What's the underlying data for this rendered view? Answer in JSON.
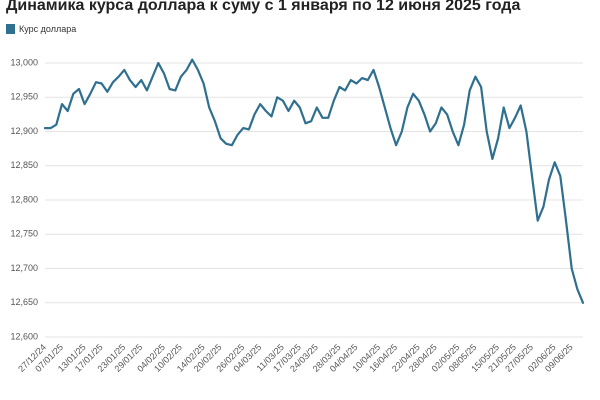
{
  "chart_data": {
    "type": "line",
    "title": "Динамика курса доллара к суму с 1 января по 12 июня 2025 года",
    "categories": [
      "27/12/24",
      null,
      null,
      "07/01/25",
      null,
      null,
      null,
      "13/01/25",
      null,
      null,
      "17/01/25",
      null,
      null,
      null,
      "23/01/25",
      null,
      null,
      "29/01/25",
      null,
      null,
      null,
      "04/02/25",
      null,
      null,
      "10/02/25",
      null,
      null,
      null,
      "14/02/25",
      null,
      null,
      "20/02/25",
      null,
      null,
      null,
      "26/02/25",
      null,
      null,
      "04/03/25",
      null,
      null,
      null,
      "11/03/25",
      null,
      null,
      "17/03/25",
      null,
      null,
      "24/03/25",
      null,
      null,
      null,
      "28/03/25",
      null,
      null,
      "04/04/25",
      null,
      null,
      null,
      "10/04/25",
      null,
      null,
      "16/04/25",
      null,
      null,
      null,
      "22/04/25",
      null,
      null,
      "28/04/25",
      null,
      null,
      null,
      "02/05/25",
      null,
      null,
      "08/05/25",
      null,
      null,
      null,
      "15/05/25",
      null,
      null,
      "21/05/25",
      null,
      null,
      "27/05/25",
      null,
      null,
      null,
      "02/06/25",
      null,
      null,
      "09/06/25",
      null,
      null
    ],
    "series": [
      {
        "name": "Курс доллара",
        "color": "#2f6f8f",
        "values": [
          12905,
          12905,
          12910,
          12940,
          12930,
          12955,
          12962,
          12940,
          12955,
          12972,
          12970,
          12958,
          12972,
          12980,
          12990,
          12975,
          12965,
          12975,
          12960,
          12980,
          13000,
          12985,
          12962,
          12960,
          12980,
          12990,
          13005,
          12990,
          12970,
          12935,
          12915,
          12890,
          12882,
          12880,
          12895,
          12905,
          12903,
          12925,
          12940,
          12930,
          12922,
          12950,
          12945,
          12930,
          12945,
          12935,
          12912,
          12915,
          12935,
          12920,
          12920,
          12945,
          12965,
          12960,
          12975,
          12970,
          12978,
          12975,
          12990,
          12965,
          12935,
          12905,
          12880,
          12900,
          12935,
          12955,
          12945,
          12925,
          12900,
          12912,
          12935,
          12925,
          12900,
          12880,
          12910,
          12960,
          12980,
          12965,
          12900,
          12860,
          12890,
          12935,
          12905,
          12920,
          12938,
          12900,
          12835,
          12770,
          12790,
          12830,
          12855,
          12835,
          12770,
          12700,
          12670,
          12650
        ]
      }
    ],
    "ylim": [
      12600,
      13000
    ],
    "yticks": [
      {
        "value": 12600,
        "label": "12,600"
      },
      {
        "value": 12650,
        "label": "12,650"
      },
      {
        "value": 12700,
        "label": "12,700"
      },
      {
        "value": 12750,
        "label": "12,750"
      },
      {
        "value": 12800,
        "label": "12,800"
      },
      {
        "value": 12850,
        "label": "12,850"
      },
      {
        "value": 12900,
        "label": "12,900"
      },
      {
        "value": 12950,
        "label": "12,950"
      },
      {
        "value": 13000,
        "label": "13,000"
      }
    ],
    "grid": true
  }
}
